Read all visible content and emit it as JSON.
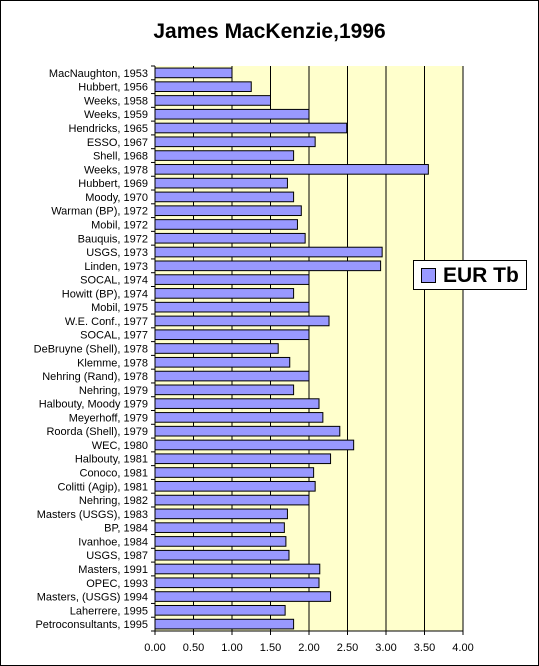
{
  "chart_data": {
    "type": "bar",
    "orientation": "horizontal",
    "title": "James MacKenzie,1996",
    "xlim": [
      0,
      4
    ],
    "xticks": [
      "0.00",
      "0.50",
      "1.00",
      "1.50",
      "2.00",
      "2.50",
      "3.00",
      "3.50",
      "4.00"
    ],
    "grid": "vertical major gridlines",
    "legend_placement": "right",
    "categories": [
      "MacNaughton, 1953",
      "Hubbert, 1956",
      "Weeks, 1958",
      "Weeks, 1959",
      "Hendricks, 1965",
      "ESSO, 1967",
      "Shell, 1968",
      "Weeks, 1978",
      "Hubbert, 1969",
      "Moody, 1970",
      "Warman (BP), 1972",
      "Mobil, 1972",
      "Bauquis, 1972",
      "USGS, 1973",
      "Linden, 1973",
      "SOCAL, 1974",
      "Howitt (BP), 1974",
      "Mobil, 1975",
      "W.E. Conf., 1977",
      "SOCAL, 1977",
      "DeBruyne (Shell), 1978",
      "Klemme, 1978",
      "Nehring (Rand), 1978",
      "Nehring, 1979",
      "Halbouty, Moody 1979",
      "Meyerhoff, 1979",
      "Roorda (Shell), 1979",
      "WEC, 1980",
      "Halbouty, 1981",
      "Conoco, 1981",
      "Colitti (Agip), 1981",
      "Nehring, 1982",
      "Masters (USGS), 1983",
      "BP, 1984",
      "Ivanhoe, 1984",
      "USGS, 1987",
      "Masters, 1991",
      "OPEC, 1993",
      "Masters, (USGS) 1994",
      "Laherrere, 1995",
      "Petroconsultants, 1995"
    ],
    "series": [
      {
        "name": "EUR Tb",
        "color": "#9999ff",
        "values": [
          1.0,
          1.25,
          1.5,
          2.0,
          2.49,
          2.08,
          1.8,
          3.55,
          1.72,
          1.8,
          1.9,
          1.85,
          1.95,
          2.95,
          2.93,
          2.0,
          1.8,
          2.0,
          2.26,
          2.0,
          1.6,
          1.75,
          2.0,
          1.8,
          2.13,
          2.18,
          2.4,
          2.58,
          2.28,
          2.06,
          2.08,
          2.0,
          1.72,
          1.68,
          1.7,
          1.74,
          2.14,
          2.13,
          2.28,
          1.69,
          1.8
        ]
      }
    ]
  },
  "colors": {
    "plot_background": "#ffffcc",
    "bar_fill": "#9999ff",
    "bar_stroke": "#000000",
    "gridline": "#000000"
  }
}
